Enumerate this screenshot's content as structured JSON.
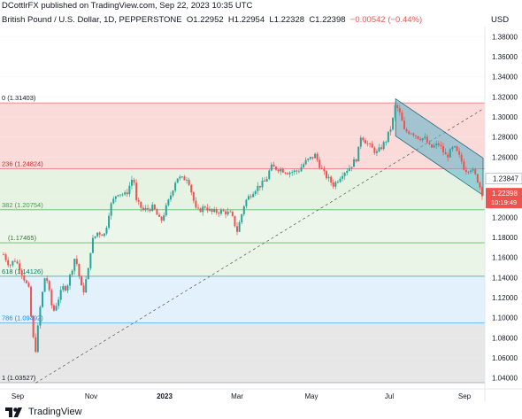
{
  "header": {
    "published": "DCottlrFX published on TradingView.com, Sep 22, 2023 10:35 UTC",
    "instrument": "British Pound / U.S. Dollar, 1D, PEPPERSTONE",
    "ohlc": {
      "open": "O1.22952",
      "high": "H1.22954",
      "low": "L1.22328",
      "close": "C1.22398",
      "change": "−0.00542 (−0.44%)"
    }
  },
  "currency": "USD",
  "footer": {
    "brand": "TradingView"
  },
  "colors": {
    "up": "#26a69a",
    "down": "#ef5350",
    "channel": "#5ab2c8",
    "fib_0": "#fad4d4",
    "fib_236": "#e3f1dd",
    "fib_382": "#e7f3e3",
    "fib_618": "#ddeefb",
    "fib_786": "#e3e3e3"
  },
  "chart_data": {
    "type": "candlestick",
    "title": "British Pound / U.S. Dollar, 1D, PEPPERSTONE",
    "ylim": [
      1.03,
      1.39
    ],
    "y_ticks": [
      "1.04000",
      "1.06000",
      "1.08000",
      "1.10000",
      "1.12000",
      "1.14000",
      "1.16000",
      "1.18000",
      "1.20000",
      "1.22000",
      "1.24000",
      "1.26000",
      "1.28000",
      "1.30000",
      "1.32000",
      "1.34000",
      "1.36000",
      "1.38000"
    ],
    "x_ticks": [
      "Sep",
      "Nov",
      "2023",
      "Mar",
      "May",
      "Jul",
      "Sep"
    ],
    "fib_levels": [
      {
        "label": "0 (1.31403)",
        "value": 1.31403
      },
      {
        "label": "236 (1.24824)",
        "value": 1.24824
      },
      {
        "label": "382 (1.20754)",
        "value": 1.20754
      },
      {
        "label": "(1.17465)",
        "value": 1.17465
      },
      {
        "label": "618 (1.14126)",
        "value": 1.14126
      },
      {
        "label": "786 (1.09492)",
        "value": 1.09492
      },
      {
        "label": "1 (1.03527)",
        "value": 1.03527
      }
    ],
    "price_tags": [
      {
        "label": "1.23847",
        "value": 1.23847
      },
      {
        "label": "1.22398",
        "sub": "10:19:49",
        "value": 1.22398
      }
    ],
    "trend_points": [
      {
        "date": "2022-08-31",
        "close": 1.163
      },
      {
        "date": "2022-09-05",
        "close": 1.152
      },
      {
        "date": "2022-09-09",
        "close": 1.158
      },
      {
        "date": "2022-09-13",
        "close": 1.15
      },
      {
        "date": "2022-09-16",
        "close": 1.141
      },
      {
        "date": "2022-09-21",
        "close": 1.126
      },
      {
        "date": "2022-09-23",
        "close": 1.085
      },
      {
        "date": "2022-09-26",
        "close": 1.068
      },
      {
        "date": "2022-09-29",
        "close": 1.105
      },
      {
        "date": "2022-10-04",
        "close": 1.145
      },
      {
        "date": "2022-10-10",
        "close": 1.105
      },
      {
        "date": "2022-10-14",
        "close": 1.118
      },
      {
        "date": "2022-10-18",
        "close": 1.13
      },
      {
        "date": "2022-10-21",
        "close": 1.13
      },
      {
        "date": "2022-10-25",
        "close": 1.147
      },
      {
        "date": "2022-10-28",
        "close": 1.162
      },
      {
        "date": "2022-11-03",
        "close": 1.123
      },
      {
        "date": "2022-11-08",
        "close": 1.15
      },
      {
        "date": "2022-11-10",
        "close": 1.175
      },
      {
        "date": "2022-11-15",
        "close": 1.185
      },
      {
        "date": "2022-11-21",
        "close": 1.183
      },
      {
        "date": "2022-11-25",
        "close": 1.21
      },
      {
        "date": "2022-12-01",
        "close": 1.225
      },
      {
        "date": "2022-12-08",
        "close": 1.222
      },
      {
        "date": "2022-12-14",
        "close": 1.242
      },
      {
        "date": "2022-12-16",
        "close": 1.216
      },
      {
        "date": "2022-12-22",
        "close": 1.207
      },
      {
        "date": "2022-12-30",
        "close": 1.21
      },
      {
        "date": "2023-01-05",
        "close": 1.195
      },
      {
        "date": "2023-01-12",
        "close": 1.218
      },
      {
        "date": "2023-01-18",
        "close": 1.24
      },
      {
        "date": "2023-01-23",
        "close": 1.238
      },
      {
        "date": "2023-01-27",
        "close": 1.24
      },
      {
        "date": "2023-02-03",
        "close": 1.205
      },
      {
        "date": "2023-02-10",
        "close": 1.211
      },
      {
        "date": "2023-02-15",
        "close": 1.205
      },
      {
        "date": "2023-02-22",
        "close": 1.206
      },
      {
        "date": "2023-02-27",
        "close": 1.205
      },
      {
        "date": "2023-03-03",
        "close": 1.203
      },
      {
        "date": "2023-03-08",
        "close": 1.186
      },
      {
        "date": "2023-03-14",
        "close": 1.215
      },
      {
        "date": "2023-03-22",
        "close": 1.228
      },
      {
        "date": "2023-03-31",
        "close": 1.236
      },
      {
        "date": "2023-04-04",
        "close": 1.25
      },
      {
        "date": "2023-04-12",
        "close": 1.248
      },
      {
        "date": "2023-04-18",
        "close": 1.245
      },
      {
        "date": "2023-04-26",
        "close": 1.246
      },
      {
        "date": "2023-05-02",
        "close": 1.255
      },
      {
        "date": "2023-05-10",
        "close": 1.262
      },
      {
        "date": "2023-05-16",
        "close": 1.245
      },
      {
        "date": "2023-05-25",
        "close": 1.232
      },
      {
        "date": "2023-06-01",
        "close": 1.244
      },
      {
        "date": "2023-06-07",
        "close": 1.25
      },
      {
        "date": "2023-06-13",
        "close": 1.26
      },
      {
        "date": "2023-06-16",
        "close": 1.282
      },
      {
        "date": "2023-06-22",
        "close": 1.272
      },
      {
        "date": "2023-06-29",
        "close": 1.264
      },
      {
        "date": "2023-07-06",
        "close": 1.276
      },
      {
        "date": "2023-07-11",
        "close": 1.292
      },
      {
        "date": "2023-07-14",
        "close": 1.313
      },
      {
        "date": "2023-07-18",
        "close": 1.301
      },
      {
        "date": "2023-07-21",
        "close": 1.286
      },
      {
        "date": "2023-07-27",
        "close": 1.285
      },
      {
        "date": "2023-08-01",
        "close": 1.28
      },
      {
        "date": "2023-08-07",
        "close": 1.278
      },
      {
        "date": "2023-08-11",
        "close": 1.269
      },
      {
        "date": "2023-08-18",
        "close": 1.273
      },
      {
        "date": "2023-08-24",
        "close": 1.26
      },
      {
        "date": "2023-08-30",
        "close": 1.27
      },
      {
        "date": "2023-09-05",
        "close": 1.257
      },
      {
        "date": "2023-09-08",
        "close": 1.247
      },
      {
        "date": "2023-09-13",
        "close": 1.249
      },
      {
        "date": "2023-09-18",
        "close": 1.238
      },
      {
        "date": "2023-09-22",
        "close": 1.224
      }
    ],
    "grid": true
  }
}
